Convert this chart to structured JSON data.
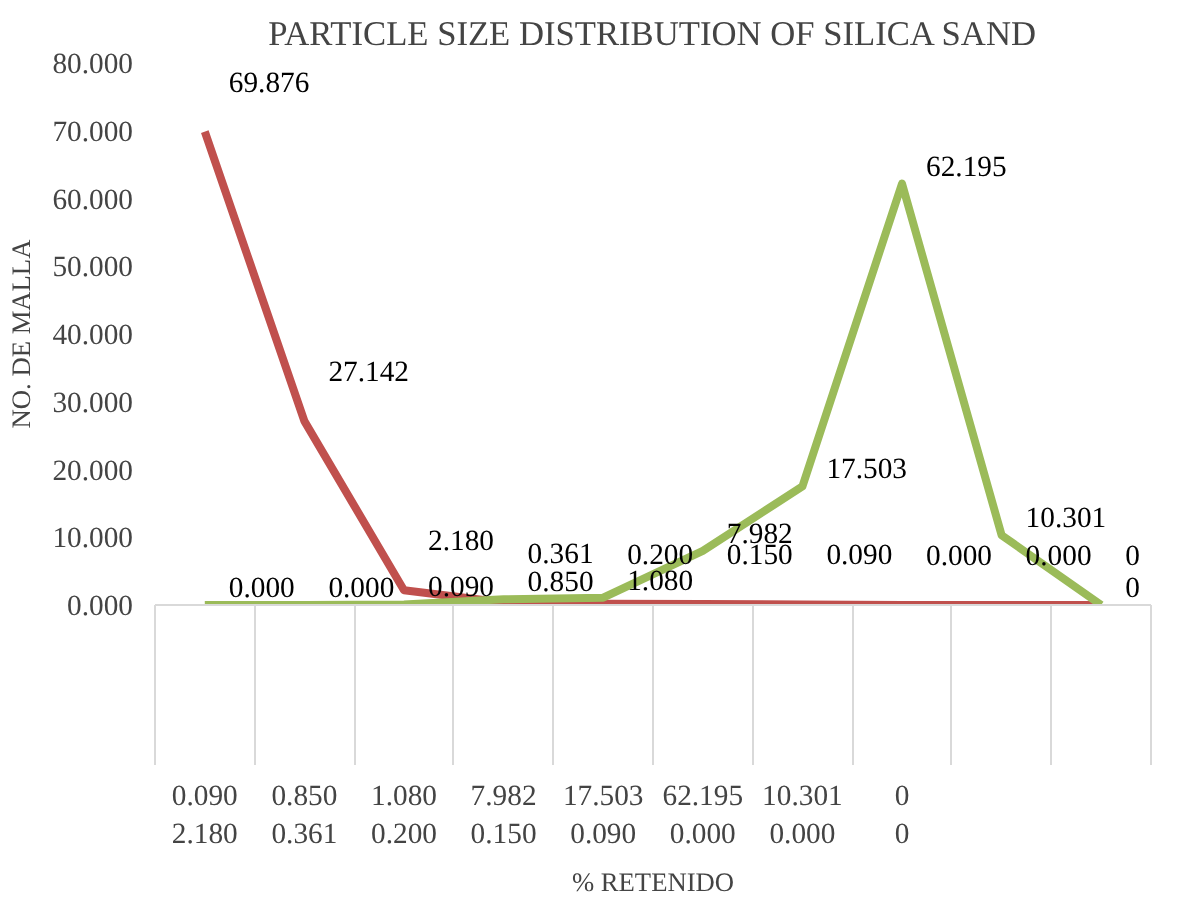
{
  "chart_data": {
    "type": "line",
    "title": "PARTICLE SIZE DISTRIBUTION OF SILICA SAND",
    "xlabel": "% RETENIDO",
    "ylabel": "NO. DE MALLA",
    "categories": [
      "0.090\n2.180",
      "0.850\n0.361",
      "1.080\n0.200",
      "7.982\n0.150",
      "17.503\n0.090",
      "62.195\n0.000",
      "10.301\n0.000",
      "0\n0",
      null,
      null
    ],
    "series": [
      {
        "color": "#c0504d",
        "values": [
          69.876,
          27.142,
          2.18,
          0.361,
          0.2,
          0.15,
          0.09,
          0,
          0,
          0
        ],
        "value_labels": [
          "69.876",
          "27.142",
          "2.180",
          "0.361",
          "0.200",
          "0.150",
          "0.090",
          "0.000",
          "0.000",
          "0"
        ]
      },
      {
        "color": "#9bbb59",
        "values": [
          0,
          0,
          0.09,
          0.85,
          1.08,
          7.982,
          17.503,
          62.195,
          10.301,
          0
        ],
        "value_labels": [
          "0.000",
          "0.000",
          "0.090",
          "0.850",
          "1.080",
          "7.982",
          "17.503",
          "62.195",
          "10.301",
          "0"
        ]
      }
    ],
    "ylim": [
      0,
      80
    ],
    "yticks": [
      {
        "value": 0,
        "label": "0.000"
      },
      {
        "value": 10,
        "label": "10.000"
      },
      {
        "value": 20,
        "label": "20.000"
      },
      {
        "value": 30,
        "label": "30.000"
      },
      {
        "value": 40,
        "label": "40.000"
      },
      {
        "value": 50,
        "label": "50.000"
      },
      {
        "value": 60,
        "label": "60.000"
      },
      {
        "value": 70,
        "label": "70.000"
      },
      {
        "value": 80,
        "label": "80.000"
      }
    ],
    "grid": false,
    "marker": "none",
    "line_style": "solid"
  }
}
